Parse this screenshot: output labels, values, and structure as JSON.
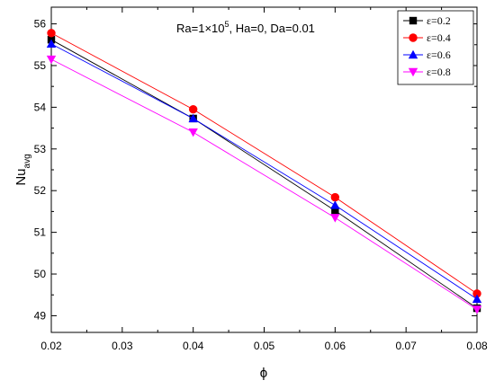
{
  "chart_data": {
    "type": "line",
    "annotation": {
      "prefix": "Ra=1×10",
      "exp": "5",
      "suffix": ", Ha=0, Da=0.01"
    },
    "xlabel": "ϕ",
    "ylabel": {
      "main": "Nu",
      "sub": "avg"
    },
    "xlim": [
      0.02,
      0.08
    ],
    "ylim": [
      48.6,
      56.4
    ],
    "x_ticks": [
      "0.02",
      "0.03",
      "0.04",
      "0.05",
      "0.06",
      "0.07",
      "0.08"
    ],
    "y_ticks": [
      "49",
      "50",
      "51",
      "52",
      "53",
      "54",
      "55",
      "56"
    ],
    "x": [
      0.02,
      0.04,
      0.06,
      0.08
    ],
    "legend_position": "top-right",
    "grid": false,
    "series": [
      {
        "name": "ε=0.2",
        "values": [
          55.62,
          53.73,
          51.52,
          49.18
        ],
        "color": "#000000",
        "marker": "square"
      },
      {
        "name": "ε=0.4",
        "values": [
          55.78,
          53.95,
          51.84,
          49.53
        ],
        "color": "#ff0000",
        "marker": "circle"
      },
      {
        "name": "ε=0.6",
        "values": [
          55.52,
          53.73,
          51.65,
          49.4
        ],
        "color": "#0000ff",
        "marker": "triangle-up"
      },
      {
        "name": "ε=0.8",
        "values": [
          55.15,
          53.4,
          51.35,
          49.15
        ],
        "color": "#ff00ff",
        "marker": "triangle-down"
      }
    ]
  }
}
